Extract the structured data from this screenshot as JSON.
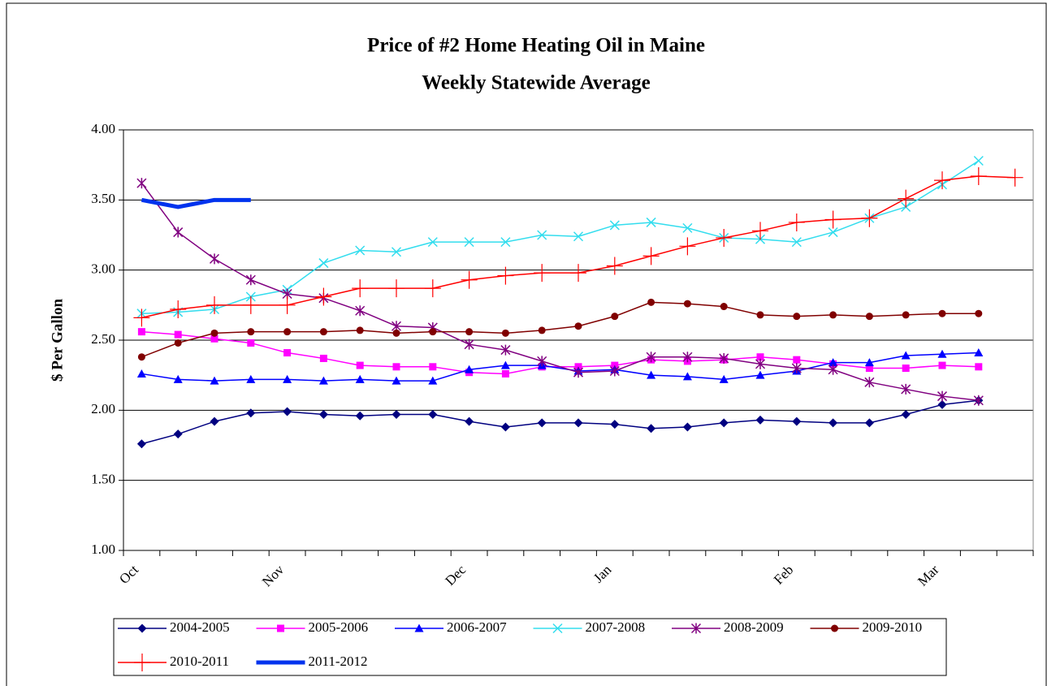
{
  "chart_data": {
    "type": "line",
    "title": "Price of #2 Home Heating Oil in Maine",
    "subtitle": "Weekly Statewide Average",
    "y_label": "$ Per Gallon",
    "categories": [
      "Oct",
      null,
      null,
      null,
      "Nov",
      null,
      null,
      null,
      null,
      "Dec",
      null,
      null,
      null,
      "Jan",
      null,
      null,
      null,
      null,
      "Feb",
      null,
      null,
      null,
      "Mar",
      null,
      null
    ],
    "ylim": [
      1.0,
      4.0
    ],
    "yticks": [
      {
        "value": 1.0,
        "label": "1.00"
      },
      {
        "value": 1.5,
        "label": "1.50"
      },
      {
        "value": 2.0,
        "label": "2.00"
      },
      {
        "value": 2.5,
        "label": "2.50"
      },
      {
        "value": 3.0,
        "label": "3.00"
      },
      {
        "value": 3.5,
        "label": "3.50"
      },
      {
        "value": 4.0,
        "label": "4.00"
      }
    ],
    "grid": true,
    "legend": "bottom",
    "series": [
      {
        "name": "2004-2005",
        "color": "#000080",
        "marker": "diamond",
        "values": [
          1.76,
          1.83,
          1.92,
          1.98,
          1.99,
          1.97,
          1.96,
          1.97,
          1.97,
          1.92,
          1.88,
          1.91,
          1.91,
          1.9,
          1.87,
          1.88,
          1.91,
          1.93,
          1.92,
          1.91,
          1.91,
          1.97,
          2.04,
          2.07,
          null
        ]
      },
      {
        "name": "2005-2006",
        "color": "#ff00ff",
        "marker": "square",
        "values": [
          2.56,
          2.54,
          2.51,
          2.48,
          2.41,
          2.37,
          2.32,
          2.31,
          2.31,
          2.27,
          2.26,
          2.31,
          2.31,
          2.32,
          2.36,
          2.35,
          2.36,
          2.38,
          2.36,
          2.33,
          2.3,
          2.3,
          2.32,
          2.31,
          null
        ]
      },
      {
        "name": "2006-2007",
        "color": "#0000ff",
        "marker": "triangle",
        "values": [
          2.26,
          2.22,
          2.21,
          2.22,
          2.22,
          2.21,
          2.22,
          2.21,
          2.21,
          2.29,
          2.32,
          2.32,
          2.28,
          2.29,
          2.25,
          2.24,
          2.22,
          2.25,
          2.28,
          2.34,
          2.34,
          2.39,
          2.4,
          2.41,
          null
        ]
      },
      {
        "name": "2007-2008",
        "color": "#33ddee",
        "marker": "x",
        "values": [
          2.69,
          2.7,
          2.72,
          2.81,
          2.86,
          3.05,
          3.14,
          3.13,
          3.2,
          3.2,
          3.2,
          3.25,
          3.24,
          3.32,
          3.34,
          3.3,
          3.23,
          3.22,
          3.2,
          3.27,
          3.37,
          3.45,
          3.61,
          3.78,
          null
        ]
      },
      {
        "name": "2008-2009",
        "color": "#800080",
        "marker": "star",
        "values": [
          3.62,
          3.27,
          3.08,
          2.93,
          2.83,
          2.8,
          2.71,
          2.6,
          2.59,
          2.47,
          2.43,
          2.35,
          2.27,
          2.28,
          2.38,
          2.38,
          2.37,
          2.33,
          2.3,
          2.29,
          2.2,
          2.15,
          2.1,
          2.07,
          null
        ]
      },
      {
        "name": "2009-2010",
        "color": "#800000",
        "marker": "circle",
        "values": [
          2.38,
          2.48,
          2.55,
          2.56,
          2.56,
          2.56,
          2.57,
          2.55,
          2.56,
          2.56,
          2.55,
          2.57,
          2.6,
          2.67,
          2.77,
          2.76,
          2.74,
          2.68,
          2.67,
          2.68,
          2.67,
          2.68,
          2.69,
          2.69,
          null
        ]
      },
      {
        "name": "2010-2011",
        "color": "#ff0000",
        "marker": "plus",
        "values": [
          2.66,
          2.72,
          2.75,
          2.75,
          2.75,
          2.81,
          2.87,
          2.87,
          2.87,
          2.93,
          2.96,
          2.98,
          2.98,
          3.03,
          3.1,
          3.17,
          3.23,
          3.28,
          3.34,
          3.36,
          3.37,
          3.51,
          3.64,
          3.67,
          3.66
        ]
      },
      {
        "name": "2011-2012",
        "color": "#0033ee",
        "marker": "none",
        "line_width": 5,
        "values": [
          3.5,
          3.45,
          3.5,
          3.5,
          null,
          null,
          null,
          null,
          null,
          null,
          null,
          null,
          null,
          null,
          null,
          null,
          null,
          null,
          null,
          null,
          null,
          null,
          null,
          null,
          null
        ]
      }
    ]
  }
}
